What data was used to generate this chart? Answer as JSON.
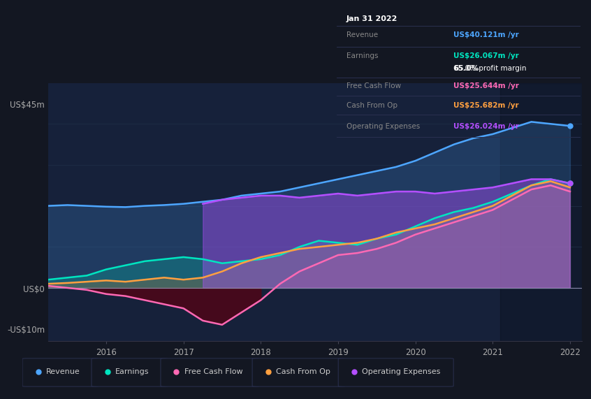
{
  "bg_color": "#131722",
  "chart_bg": "#16213a",
  "panel_bg": "#0d1117",
  "grid_color": "#1e2d45",
  "title_date": "Jan 31 2022",
  "tooltip": {
    "Revenue": {
      "value": "US$40.121m /yr",
      "color": "#4da6ff"
    },
    "Earnings": {
      "value": "US$26.067m /yr",
      "color": "#00e5c0"
    },
    "margin": "65.0% profit margin",
    "Free Cash Flow": {
      "value": "US$25.644m /yr",
      "color": "#ff69b4"
    },
    "Cash From Op": {
      "value": "US$25.682m /yr",
      "color": "#ffa040"
    },
    "Operating Expenses": {
      "value": "US$26.024m /yr",
      "color": "#b44fff"
    }
  },
  "ylabel_top": "US$45m",
  "ylabel_zero": "US$0",
  "ylabel_bot": "-US$10m",
  "legend": [
    {
      "label": "Revenue",
      "color": "#4da6ff"
    },
    {
      "label": "Earnings",
      "color": "#00e5c0"
    },
    {
      "label": "Free Cash Flow",
      "color": "#ff69b4"
    },
    {
      "label": "Cash From Op",
      "color": "#ffa040"
    },
    {
      "label": "Operating Expenses",
      "color": "#b44fff"
    }
  ],
  "x_ticks": [
    "2016",
    "2017",
    "2018",
    "2019",
    "2020",
    "2021",
    "2022"
  ],
  "ylim": [
    -13,
    50
  ],
  "xlim": [
    2015.25,
    2022.15
  ],
  "colors": {
    "revenue": "#4da6ff",
    "earnings": "#00e5c0",
    "fcf": "#ff69b4",
    "cashfromop": "#ffa040",
    "opex": "#b44fff"
  }
}
